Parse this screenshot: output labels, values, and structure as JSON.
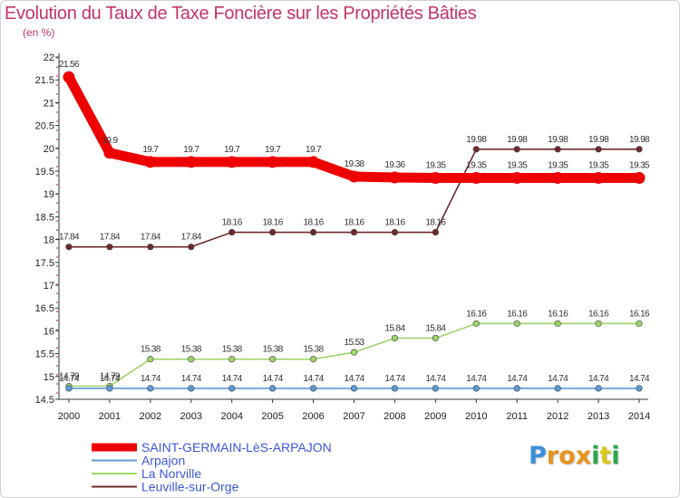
{
  "title": "Evolution du Taux de Taxe Foncière sur les Propriétés Bâties",
  "unit_label": "(en %)",
  "logo": {
    "letters": [
      "P",
      "r",
      "o",
      "x",
      "i",
      "t",
      "i"
    ],
    "colors": [
      "#3a8fd8",
      "#e8931e",
      "#e8931e",
      "#e8931e",
      "#2aa84a",
      "#d9c81b",
      "#2aa84a"
    ]
  },
  "chart_data": {
    "type": "line",
    "title": "Evolution du Taux de Taxe Foncière sur les Propriétés Bâties",
    "ylabel": "(en %)",
    "xlabel": "",
    "x": [
      "2000",
      "2001",
      "2002",
      "2003",
      "2004",
      "2005",
      "2006",
      "2007",
      "2008",
      "2009",
      "2010",
      "2011",
      "2012",
      "2013",
      "2014"
    ],
    "ylim": [
      14.5,
      22
    ],
    "yticks": [
      "14.5",
      "15",
      "15.5",
      "16",
      "16.5",
      "17",
      "17.5",
      "18",
      "18.5",
      "19",
      "19.5",
      "20",
      "20.5",
      "21",
      "21.5",
      "22"
    ],
    "legend_position": "bottom-left",
    "series": [
      {
        "name": "SAINT-GERMAIN-LèS-ARPAJON",
        "color": "#ee0000",
        "values": [
          21.56,
          19.9,
          19.7,
          19.7,
          19.7,
          19.7,
          19.7,
          19.38,
          19.36,
          19.35,
          19.35,
          19.35,
          19.35,
          19.35,
          19.35
        ],
        "labels": [
          "21.56",
          "19.9",
          "19.7",
          "19.7",
          "19.7",
          "19.7",
          "19.7",
          "19.38",
          "19.36",
          "19.35",
          "19.35",
          "19.35",
          "19.35",
          "19.35",
          "19.35"
        ]
      },
      {
        "name": "Arpajon",
        "color": "#5b9ad5",
        "values": [
          14.74,
          14.74,
          14.74,
          14.74,
          14.74,
          14.74,
          14.74,
          14.74,
          14.74,
          14.74,
          14.74,
          14.74,
          14.74,
          14.74,
          14.74
        ],
        "labels": [
          "14.74",
          "14.74",
          "14.74",
          "14.74",
          "14.74",
          "14.74",
          "14.74",
          "14.74",
          "14.74",
          "14.74",
          "14.74",
          "14.74",
          "14.74",
          "14.74",
          "14.74"
        ]
      },
      {
        "name": "La Norville",
        "color": "#9ed46a",
        "values": [
          14.79,
          14.79,
          15.38,
          15.38,
          15.38,
          15.38,
          15.38,
          15.53,
          15.84,
          15.84,
          16.16,
          16.16,
          16.16,
          16.16,
          16.16
        ],
        "labels": [
          "14.79",
          "14.79",
          "15.38",
          "15.38",
          "15.38",
          "15.38",
          "15.38",
          "15.53",
          "15.84",
          "15.84",
          "16.16",
          "16.16",
          "16.16",
          "16.16",
          "16.16"
        ]
      },
      {
        "name": "Leuville-sur-Orge",
        "color": "#6e2a2a",
        "values": [
          17.84,
          17.84,
          17.84,
          17.84,
          18.16,
          18.16,
          18.16,
          18.16,
          18.16,
          18.16,
          19.98,
          19.98,
          19.98,
          19.98,
          19.98
        ],
        "labels": [
          "17.84",
          "17.84",
          "17.84",
          "17.84",
          "18.16",
          "18.16",
          "18.16",
          "18.16",
          "18.16",
          "18.16",
          "19.98",
          "19.98",
          "19.98",
          "19.98",
          "19.98"
        ]
      }
    ]
  }
}
